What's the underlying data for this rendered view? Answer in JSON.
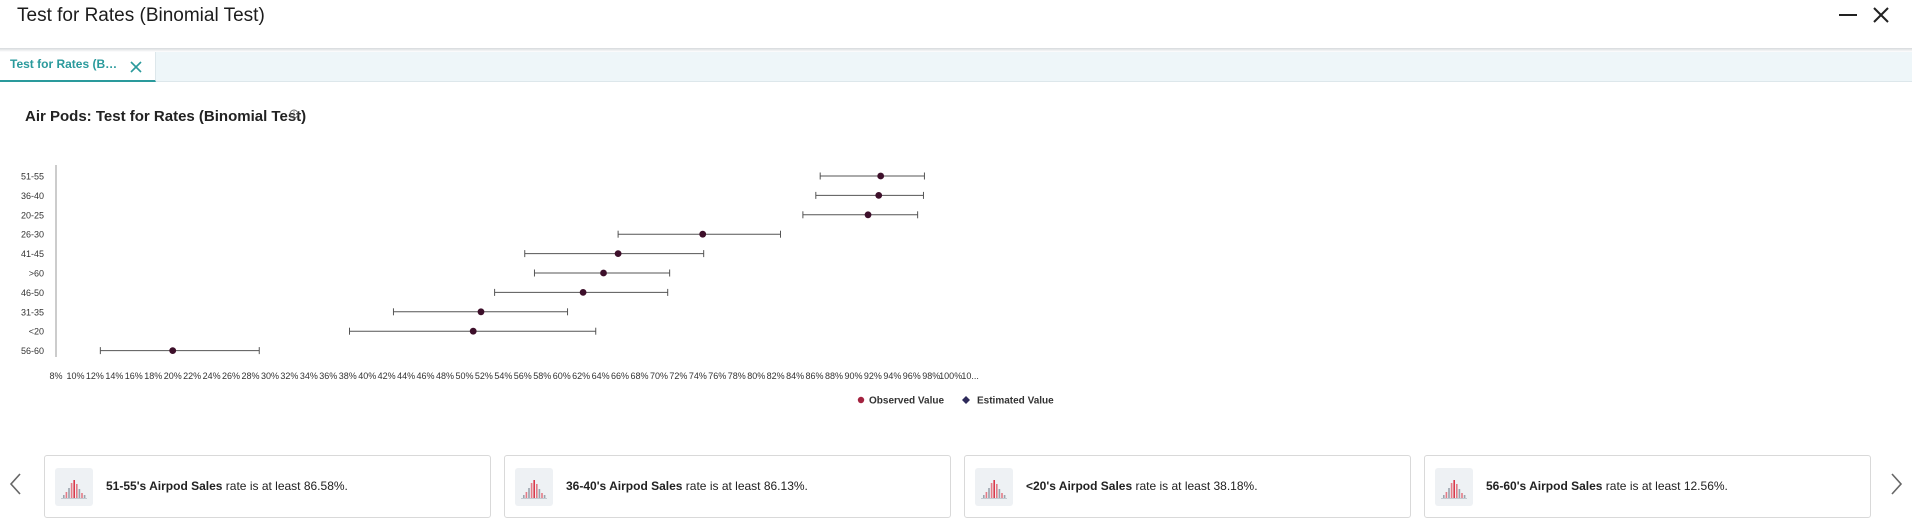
{
  "window": {
    "title": "Test for Rates (Binomial Test)"
  },
  "tabs": [
    {
      "label": "Test for Rates (Binomial Test)",
      "active": true
    }
  ],
  "chart_data": {
    "type": "scatter",
    "title": "Air Pods: Test for Rates (Binomial Test)",
    "categories": [
      "51-55",
      "36-40",
      "20-25",
      "26-30",
      "41-45",
      ">60",
      "46-50",
      "31-35",
      "<20",
      "56-60"
    ],
    "observed": [
      92.8,
      92.6,
      91.5,
      74.5,
      65.8,
      64.3,
      62.2,
      51.7,
      50.9,
      20.0
    ],
    "ci_lower": [
      86.58,
      86.13,
      84.8,
      65.8,
      56.2,
      57.2,
      53.1,
      42.7,
      38.18,
      12.56
    ],
    "ci_upper": [
      97.3,
      97.2,
      96.6,
      82.5,
      74.6,
      71.1,
      70.9,
      60.6,
      63.5,
      28.9
    ],
    "xlim": [
      8,
      102
    ],
    "x_ticks": [
      "8%",
      "10%",
      "12%",
      "14%",
      "16%",
      "18%",
      "20%",
      "22%",
      "24%",
      "26%",
      "28%",
      "30%",
      "32%",
      "34%",
      "36%",
      "38%",
      "40%",
      "42%",
      "44%",
      "46%",
      "48%",
      "50%",
      "52%",
      "54%",
      "56%",
      "58%",
      "60%",
      "62%",
      "64%",
      "66%",
      "68%",
      "70%",
      "72%",
      "74%",
      "76%",
      "78%",
      "80%",
      "82%",
      "84%",
      "86%",
      "88%",
      "90%",
      "92%",
      "94%",
      "96%",
      "98%",
      "100%",
      "10..."
    ],
    "legend": [
      {
        "label": "Observed Value",
        "color": "#a3223f",
        "marker": "circle"
      },
      {
        "label": "Estimated Value",
        "color": "#2d2a5a",
        "marker": "diamond"
      }
    ],
    "legend_position": "bottom",
    "grid": false,
    "point_color": "#3d0f2a",
    "errorbar_color": "#555555"
  },
  "insights": [
    {
      "group": "51-55's Airpod Sales",
      "text": " rate is at least 86.58%."
    },
    {
      "group": "36-40's Airpod Sales",
      "text": " rate is at least 86.13%."
    },
    {
      "group": "<20's Airpod Sales",
      "text": " rate is at least 38.18%."
    },
    {
      "group": "56-60's Airpod Sales",
      "text": " rate is at least 12.56%."
    }
  ],
  "colors": {
    "accent": "#2a9a9c",
    "tab_strip": "#eef6f9"
  },
  "icons": {
    "minimize": "minimize-icon",
    "close": "close-icon",
    "tab_close": "close-icon",
    "info": "info-icon",
    "prev": "chevron-left-icon",
    "next": "chevron-right-icon",
    "card": "histogram-icon"
  }
}
